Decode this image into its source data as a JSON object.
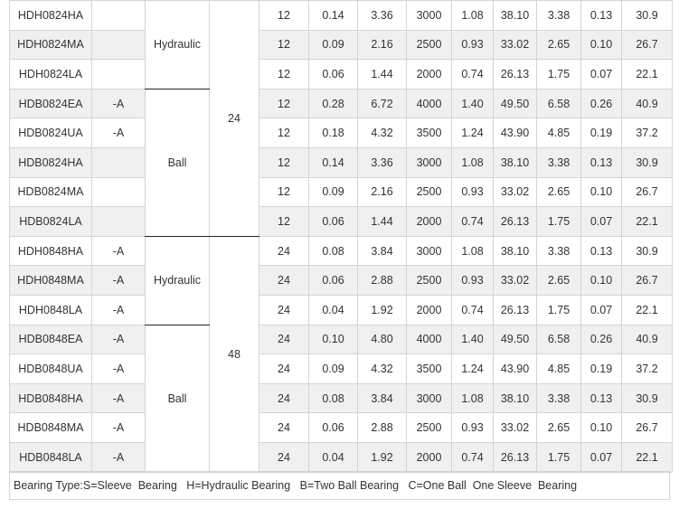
{
  "table": {
    "groups": [
      {
        "voltage": "24",
        "subgroups": [
          {
            "type": "Hydraulic",
            "rows": [
              {
                "model": "HDH0824HA",
                "suffix": "",
                "cells": [
                  "12",
                  "0.14",
                  "3.36",
                  "3000",
                  "1.08",
                  "38.10",
                  "3.38",
                  "0.13",
                  "30.9"
                ]
              },
              {
                "model": "HDH0824MA",
                "suffix": "",
                "cells": [
                  "12",
                  "0.09",
                  "2.16",
                  "2500",
                  "0.93",
                  "33.02",
                  "2.65",
                  "0.10",
                  "26.7"
                ]
              },
              {
                "model": "HDH0824LA",
                "suffix": "",
                "cells": [
                  "12",
                  "0.06",
                  "1.44",
                  "2000",
                  "0.74",
                  "26.13",
                  "1.75",
                  "0.07",
                  "22.1"
                ]
              }
            ]
          },
          {
            "type": "Ball",
            "rows": [
              {
                "model": "HDB0824EA",
                "suffix": "-A",
                "cells": [
                  "12",
                  "0.28",
                  "6.72",
                  "4000",
                  "1.40",
                  "49.50",
                  "6.58",
                  "0.26",
                  "40.9"
                ]
              },
              {
                "model": "HDB0824UA",
                "suffix": "-A",
                "cells": [
                  "12",
                  "0.18",
                  "4.32",
                  "3500",
                  "1.24",
                  "43.90",
                  "4.85",
                  "0.19",
                  "37.2"
                ]
              },
              {
                "model": "HDB0824HA",
                "suffix": "",
                "cells": [
                  "12",
                  "0.14",
                  "3.36",
                  "3000",
                  "1.08",
                  "38.10",
                  "3.38",
                  "0.13",
                  "30.9"
                ]
              },
              {
                "model": "HDB0824MA",
                "suffix": "",
                "cells": [
                  "12",
                  "0.09",
                  "2.16",
                  "2500",
                  "0.93",
                  "33.02",
                  "2.65",
                  "0.10",
                  "26.7"
                ]
              },
              {
                "model": "HDB0824LA",
                "suffix": "",
                "cells": [
                  "12",
                  "0.06",
                  "1.44",
                  "2000",
                  "0.74",
                  "26.13",
                  "1.75",
                  "0.07",
                  "22.1"
                ]
              }
            ]
          }
        ]
      },
      {
        "voltage": "48",
        "subgroups": [
          {
            "type": "Hydraulic",
            "rows": [
              {
                "model": "HDH0848HA",
                "suffix": "-A",
                "cells": [
                  "24",
                  "0.08",
                  "3.84",
                  "3000",
                  "1.08",
                  "38.10",
                  "3.38",
                  "0.13",
                  "30.9"
                ]
              },
              {
                "model": "HDH0848MA",
                "suffix": "-A",
                "cells": [
                  "24",
                  "0.06",
                  "2.88",
                  "2500",
                  "0.93",
                  "33.02",
                  "2.65",
                  "0.10",
                  "26.7"
                ]
              },
              {
                "model": "HDH0848LA",
                "suffix": "-A",
                "cells": [
                  "24",
                  "0.04",
                  "1.92",
                  "2000",
                  "0.74",
                  "26.13",
                  "1.75",
                  "0.07",
                  "22.1"
                ]
              }
            ]
          },
          {
            "type": "Ball",
            "rows": [
              {
                "model": "HDB0848EA",
                "suffix": "-A",
                "cells": [
                  "24",
                  "0.10",
                  "4.80",
                  "4000",
                  "1.40",
                  "49.50",
                  "6.58",
                  "0.26",
                  "40.9"
                ]
              },
              {
                "model": "HDB0848UA",
                "suffix": "-A",
                "cells": [
                  "24",
                  "0.09",
                  "4.32",
                  "3500",
                  "1.24",
                  "43.90",
                  "4.85",
                  "0.19",
                  "37.2"
                ]
              },
              {
                "model": "HDB0848HA",
                "suffix": "-A",
                "cells": [
                  "24",
                  "0.08",
                  "3.84",
                  "3000",
                  "1.08",
                  "38.10",
                  "3.38",
                  "0.13",
                  "30.9"
                ]
              },
              {
                "model": "HDB0848MA",
                "suffix": "-A",
                "cells": [
                  "24",
                  "0.06",
                  "2.88",
                  "2500",
                  "0.93",
                  "33.02",
                  "2.65",
                  "0.10",
                  "26.7"
                ]
              },
              {
                "model": "HDB0848LA",
                "suffix": "-A",
                "cells": [
                  "24",
                  "0.04",
                  "1.92",
                  "2000",
                  "0.74",
                  "26.13",
                  "1.75",
                  "0.07",
                  "22.1"
                ]
              }
            ]
          }
        ]
      }
    ]
  },
  "legend": {
    "parts": [
      "Bearing Type:S=Sleeve  Bearing",
      "H=Hydraulic Bearing",
      "B=Two Ball Bearing",
      "C=One Ball  One Sleeve  Bearing"
    ]
  },
  "colors": {
    "stripe": "#f0f0f0",
    "border": "#d4d4d4",
    "group_separator": "#222222",
    "text": "#333333"
  }
}
